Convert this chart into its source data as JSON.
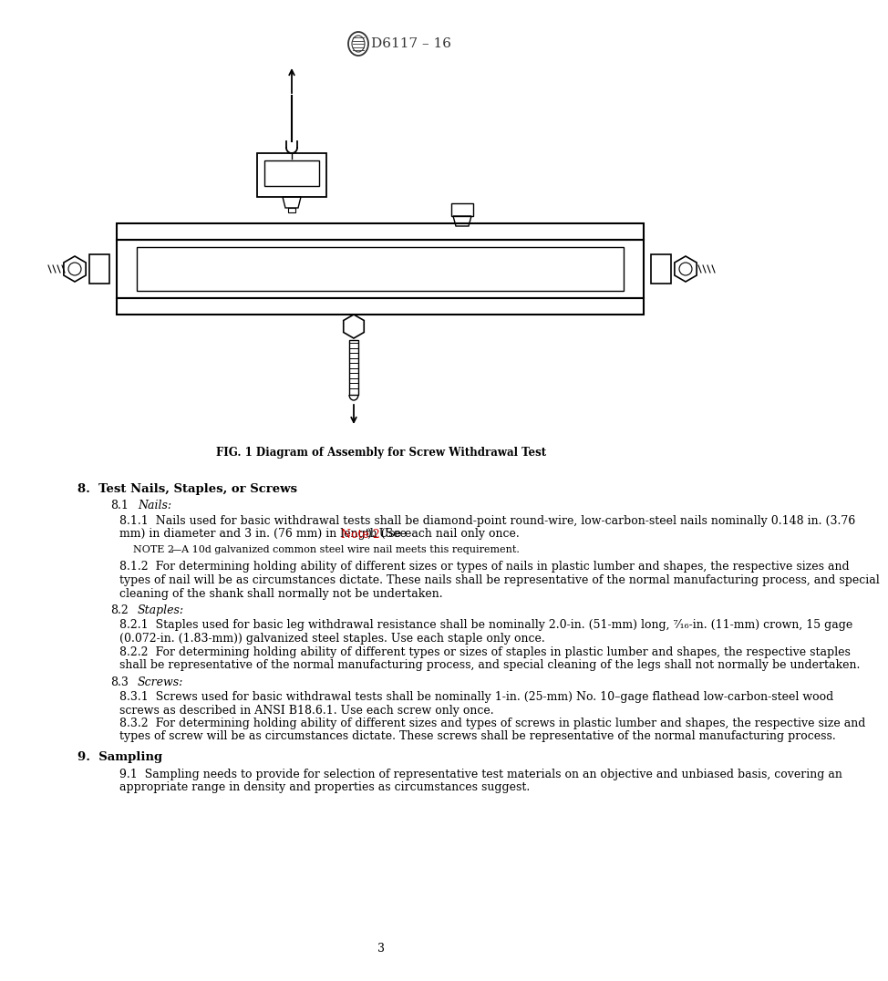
{
  "title": "D6117 – 16",
  "fig_caption": "FIG. 1 Diagram of Assembly for Screw Withdrawal Test",
  "page_number": "3",
  "section8_header": "8.  Test Nails, Staples, or Screws",
  "s81_italic": "Nails:",
  "s811_part1": "8.1.1  Nails used for basic withdrawal tests shall be diamond-point round-wire, low-carbon-steel nails nominally 0.148 in. (3.76",
  "s811_part2": "mm) in diameter and 3 in. (76 mm) in length (See ",
  "s811_note2": "Note 2",
  "s811_part3": "). Use each nail only once.",
  "note2_full": "NOTE 2—A 10d galvanized common steel wire nail meets this requirement.",
  "s812_lines": [
    "8.1.2  For determining holding ability of different sizes or types of nails in plastic lumber and shapes, the respective sizes and",
    "types of nail will be as circumstances dictate. These nails shall be representative of the normal manufacturing process, and special",
    "cleaning of the shank shall normally not be undertaken."
  ],
  "s82_italic": "Staples:",
  "s821_lines": [
    "8.2.1  Staples used for basic leg withdrawal resistance shall be nominally 2.0-in. (51-mm) long, ⁷⁄₁₆-in. (11-mm) crown, 15 gage",
    "(0.072-in. (1.83-mm)) galvanized steel staples. Use each staple only once."
  ],
  "s822_lines": [
    "8.2.2  For determining holding ability of different types or sizes of staples in plastic lumber and shapes, the respective staples",
    "shall be representative of the normal manufacturing process, and special cleaning of the legs shall not normally be undertaken."
  ],
  "s83_italic": "Screws:",
  "s831_lines": [
    "8.3.1  Screws used for basic withdrawal tests shall be nominally 1-in. (25-mm) No. 10–gage flathead low-carbon-steel wood",
    "screws as described in ANSI B18.6.1. Use each screw only once."
  ],
  "s832_lines": [
    "8.3.2  For determining holding ability of different sizes and types of screws in plastic lumber and shapes, the respective size and",
    "types of screw will be as circumstances dictate. These screws shall be representative of the normal manufacturing process."
  ],
  "section9_header": "9.  Sampling",
  "s91_lines": [
    "9.1  Sampling needs to provide for selection of representative test materials on an objective and unbiased basis, covering an",
    "appropriate range in density and properties as circumstances suggest."
  ],
  "bg_color": "#ffffff",
  "text_color": "#000000",
  "red_color": "#cc0000",
  "dark_color": "#333333"
}
